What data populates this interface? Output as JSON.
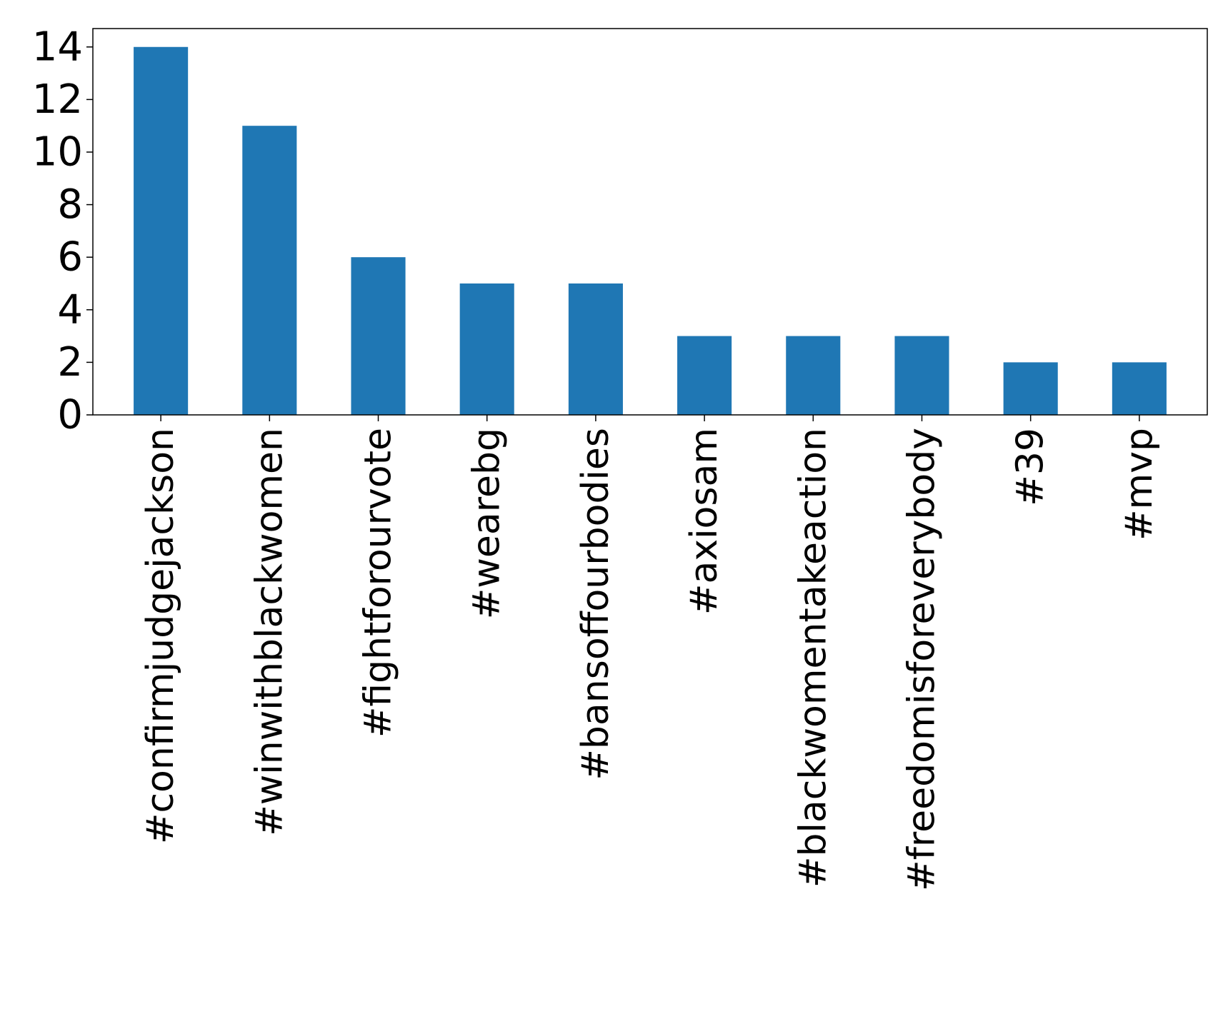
{
  "chart_data": {
    "type": "bar",
    "title": "",
    "xlabel": "",
    "ylabel": "",
    "categories": [
      "#confirmjudgejackson",
      "#winwithblackwomen",
      "#fightforourvote",
      "#wearebg",
      "#bansoffourbodies",
      "#axiosam",
      "#blackwomentakeaction",
      "#freedomisforeverybody",
      "#39",
      "#mvp"
    ],
    "values": [
      14,
      11,
      6,
      5,
      5,
      3,
      3,
      3,
      2,
      2
    ],
    "ylim": [
      0,
      14.7
    ],
    "yticks": [
      0,
      2,
      4,
      6,
      8,
      10,
      12,
      14
    ],
    "bar_color": "#1f77b4",
    "grid": false,
    "legend": "none"
  }
}
